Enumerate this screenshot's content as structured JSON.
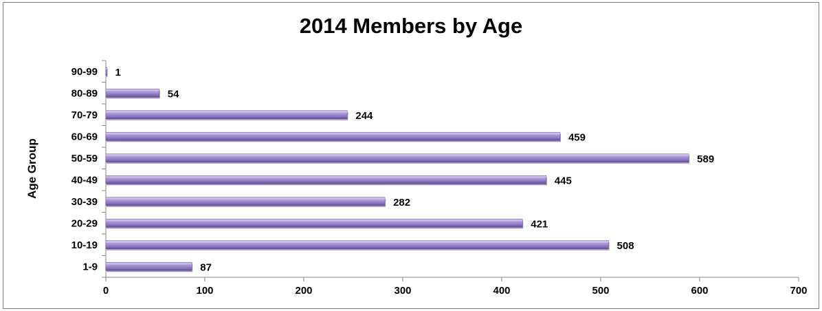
{
  "chart_data": {
    "type": "bar",
    "orientation": "horizontal",
    "title": "2014 Members by Age",
    "xlabel": "",
    "ylabel": "Age Group",
    "categories": [
      "1-9",
      "10-19",
      "20-29",
      "30-39",
      "40-49",
      "50-59",
      "60-69",
      "70-79",
      "80-89",
      "90-99"
    ],
    "values": [
      87,
      508,
      421,
      282,
      445,
      589,
      459,
      244,
      54,
      1
    ],
    "xlim": [
      0,
      700
    ],
    "xticks": [
      0,
      100,
      200,
      300,
      400,
      500,
      600,
      700
    ],
    "grid": false,
    "legend": "none",
    "data_labels": true,
    "bar_color": "#8e7cc3",
    "bar_highlight": "#c9bfe8",
    "bar_shadow": "#5b4a8a"
  }
}
